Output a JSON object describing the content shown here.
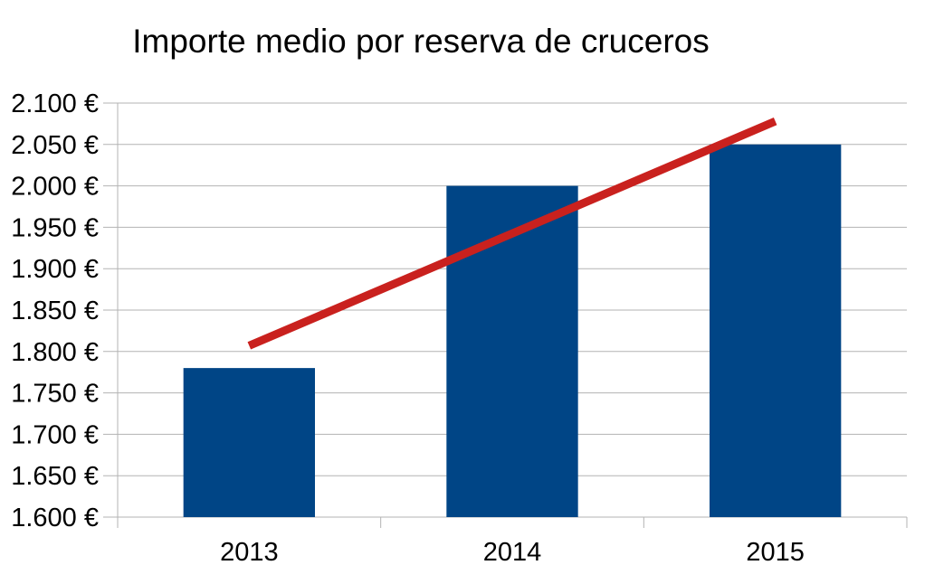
{
  "chart_data": {
    "type": "bar",
    "title": "Importe medio por reserva de cruceros",
    "xlabel": "",
    "ylabel": "",
    "categories": [
      "2013",
      "2014",
      "2015"
    ],
    "series": [
      {
        "values": [
          1780,
          2000,
          2050
        ],
        "color": "#004586"
      }
    ],
    "trendline": {
      "type": "linear",
      "color": "#c9211e",
      "start": 1807,
      "end": 2078
    },
    "ylim": [
      1600,
      2100
    ],
    "yticks": [
      1600,
      1650,
      1700,
      1750,
      1800,
      1850,
      1900,
      1950,
      2000,
      2050,
      2100
    ],
    "ytick_labels": [
      "1.600 €",
      "1.650 €",
      "1.700 €",
      "1.750 €",
      "1.800 €",
      "1.850 €",
      "1.900 €",
      "1.950 €",
      "2.000 €",
      "2.050 €",
      "2.100 €"
    ],
    "grid": true,
    "legend": "none"
  }
}
